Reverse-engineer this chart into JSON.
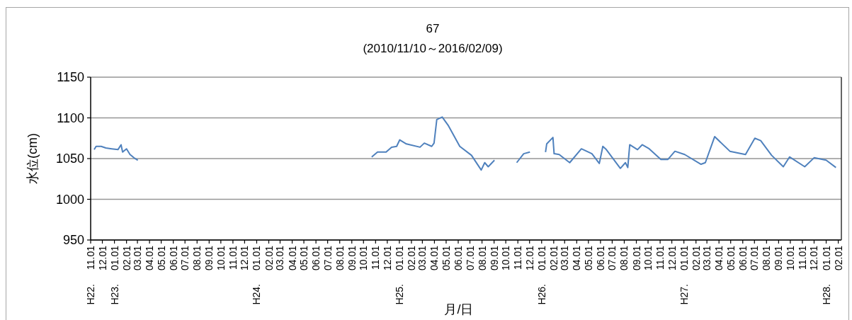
{
  "chart_data": {
    "type": "line",
    "title": "67",
    "subtitle": "(2010/11/10～2016/02/09)",
    "xlabel": "月/日",
    "ylabel": "水位(cm)",
    "grid": "y",
    "ylim": [
      950,
      1150
    ],
    "yticks": [
      950,
      1000,
      1050,
      1100,
      1150
    ],
    "xlim": [
      "2010-11-01",
      "2016-02-09"
    ],
    "xticks": [
      {
        "value": "2010-11-01",
        "label": "11.01"
      },
      {
        "value": "2010-12-01",
        "label": "12.01"
      },
      {
        "value": "2011-01-01",
        "label": "01.01"
      },
      {
        "value": "2011-02-01",
        "label": "02.01"
      },
      {
        "value": "2011-03-01",
        "label": "03.01"
      },
      {
        "value": "2011-04-01",
        "label": "04.01"
      },
      {
        "value": "2011-05-01",
        "label": "05.01"
      },
      {
        "value": "2011-06-01",
        "label": "06.01"
      },
      {
        "value": "2011-07-01",
        "label": "07.01"
      },
      {
        "value": "2011-08-01",
        "label": "08.01"
      },
      {
        "value": "2011-09-01",
        "label": "09.01"
      },
      {
        "value": "2011-10-01",
        "label": "10.01"
      },
      {
        "value": "2011-11-01",
        "label": "11.01"
      },
      {
        "value": "2011-12-01",
        "label": "12.01"
      },
      {
        "value": "2012-01-01",
        "label": "01.01"
      },
      {
        "value": "2012-02-01",
        "label": "02.01"
      },
      {
        "value": "2012-03-01",
        "label": "03.01"
      },
      {
        "value": "2012-04-01",
        "label": "04.01"
      },
      {
        "value": "2012-05-01",
        "label": "05.01"
      },
      {
        "value": "2012-06-01",
        "label": "06.01"
      },
      {
        "value": "2012-07-01",
        "label": "07.01"
      },
      {
        "value": "2012-08-01",
        "label": "08.01"
      },
      {
        "value": "2012-09-01",
        "label": "09.01"
      },
      {
        "value": "2012-10-01",
        "label": "10.01"
      },
      {
        "value": "2012-11-01",
        "label": "11.01"
      },
      {
        "value": "2012-12-01",
        "label": "12.01"
      },
      {
        "value": "2013-01-01",
        "label": "01.01"
      },
      {
        "value": "2013-02-01",
        "label": "02.01"
      },
      {
        "value": "2013-03-01",
        "label": "03.01"
      },
      {
        "value": "2013-04-01",
        "label": "04.01"
      },
      {
        "value": "2013-05-01",
        "label": "05.01"
      },
      {
        "value": "2013-06-01",
        "label": "06.01"
      },
      {
        "value": "2013-07-01",
        "label": "07.01"
      },
      {
        "value": "2013-08-01",
        "label": "08.01"
      },
      {
        "value": "2013-09-01",
        "label": "09.01"
      },
      {
        "value": "2013-10-01",
        "label": "10.01"
      },
      {
        "value": "2013-11-01",
        "label": "11.01"
      },
      {
        "value": "2013-12-01",
        "label": "12.01"
      },
      {
        "value": "2014-01-01",
        "label": "01.01"
      },
      {
        "value": "2014-02-01",
        "label": "02.01"
      },
      {
        "value": "2014-03-01",
        "label": "03.01"
      },
      {
        "value": "2014-04-01",
        "label": "04.01"
      },
      {
        "value": "2014-05-01",
        "label": "05.01"
      },
      {
        "value": "2014-06-01",
        "label": "06.01"
      },
      {
        "value": "2014-07-01",
        "label": "07.01"
      },
      {
        "value": "2014-08-01",
        "label": "08.01"
      },
      {
        "value": "2014-09-01",
        "label": "09.01"
      },
      {
        "value": "2014-10-01",
        "label": "10.01"
      },
      {
        "value": "2014-11-01",
        "label": "11.01"
      },
      {
        "value": "2014-12-01",
        "label": "12.01"
      },
      {
        "value": "2015-01-01",
        "label": "01.01"
      },
      {
        "value": "2015-02-01",
        "label": "02.01"
      },
      {
        "value": "2015-03-01",
        "label": "03.01"
      },
      {
        "value": "2015-04-01",
        "label": "04.01"
      },
      {
        "value": "2015-05-01",
        "label": "05.01"
      },
      {
        "value": "2015-06-01",
        "label": "06.01"
      },
      {
        "value": "2015-07-01",
        "label": "07.01"
      },
      {
        "value": "2015-08-01",
        "label": "08.01"
      },
      {
        "value": "2015-09-01",
        "label": "09.01"
      },
      {
        "value": "2015-10-01",
        "label": "10.01"
      },
      {
        "value": "2015-11-01",
        "label": "11.01"
      },
      {
        "value": "2015-12-01",
        "label": "12.01"
      },
      {
        "value": "2016-01-01",
        "label": "01.01"
      },
      {
        "value": "2016-02-01",
        "label": "02.01"
      }
    ],
    "annotations": [
      "H22.",
      "H23.",
      "H24.",
      "H25.",
      "H26.",
      "H27.",
      "H28."
    ],
    "series": [
      {
        "color": "#4f81bd",
        "x": [
          "2010-11-10",
          "2010-11-15",
          "2010-11-28",
          "2010-12-10",
          "2010-12-25",
          "2011-01-10",
          "2011-01-18",
          "2011-01-22",
          "2011-02-01",
          "2011-02-10",
          "2011-02-20",
          "2011-03-02"
        ],
        "values": [
          1061,
          1065,
          1065,
          1063,
          1062,
          1061,
          1067,
          1058,
          1062,
          1055,
          1051,
          1048
        ]
      },
      {
        "color": "#4f81bd",
        "x": [
          "2012-10-22",
          "2012-11-06",
          "2012-11-28",
          "2012-12-12",
          "2012-12-25",
          "2013-01-02",
          "2013-01-19",
          "2013-02-23",
          "2013-03-06",
          "2013-03-25",
          "2013-03-31",
          "2013-04-07",
          "2013-04-21",
          "2013-05-06",
          "2013-06-05",
          "2013-07-05",
          "2013-07-30",
          "2013-08-08",
          "2013-08-17",
          "2013-09-02"
        ],
        "values": [
          1052,
          1058,
          1058,
          1064,
          1065,
          1073,
          1068,
          1064,
          1069,
          1065,
          1069,
          1098,
          1101,
          1091,
          1065,
          1054,
          1036,
          1045,
          1040,
          1048
        ]
      },
      {
        "color": "#4f81bd",
        "x": [
          "2013-10-29",
          "2013-11-16",
          "2013-12-02"
        ],
        "values": [
          1045,
          1056,
          1058
        ]
      },
      {
        "color": "#4f81bd",
        "x": [
          "2014-01-11",
          "2014-01-14",
          "2014-01-30",
          "2014-02-02",
          "2014-02-15",
          "2014-03-14",
          "2014-04-13",
          "2014-05-10",
          "2014-05-29",
          "2014-06-07",
          "2014-06-16",
          "2014-07-22",
          "2014-08-04",
          "2014-08-10",
          "2014-08-15",
          "2014-09-04",
          "2014-09-16",
          "2014-10-04",
          "2014-11-03",
          "2014-11-21",
          "2014-12-09",
          "2015-01-03",
          "2015-02-14",
          "2015-02-25",
          "2015-03-21",
          "2015-04-29",
          "2015-06-08",
          "2015-07-02",
          "2015-07-17",
          "2015-08-14",
          "2015-09-13",
          "2015-09-29",
          "2015-11-07",
          "2015-12-01",
          "2016-01-01",
          "2016-01-26"
        ],
        "values": [
          1058,
          1068,
          1076,
          1056,
          1055,
          1045,
          1062,
          1056,
          1044,
          1065,
          1061,
          1038,
          1045,
          1039,
          1067,
          1061,
          1067,
          1062,
          1049,
          1049,
          1059,
          1055,
          1043,
          1045,
          1077,
          1059,
          1055,
          1075,
          1072,
          1054,
          1040,
          1052,
          1040,
          1051,
          1048,
          1039
        ]
      }
    ]
  }
}
